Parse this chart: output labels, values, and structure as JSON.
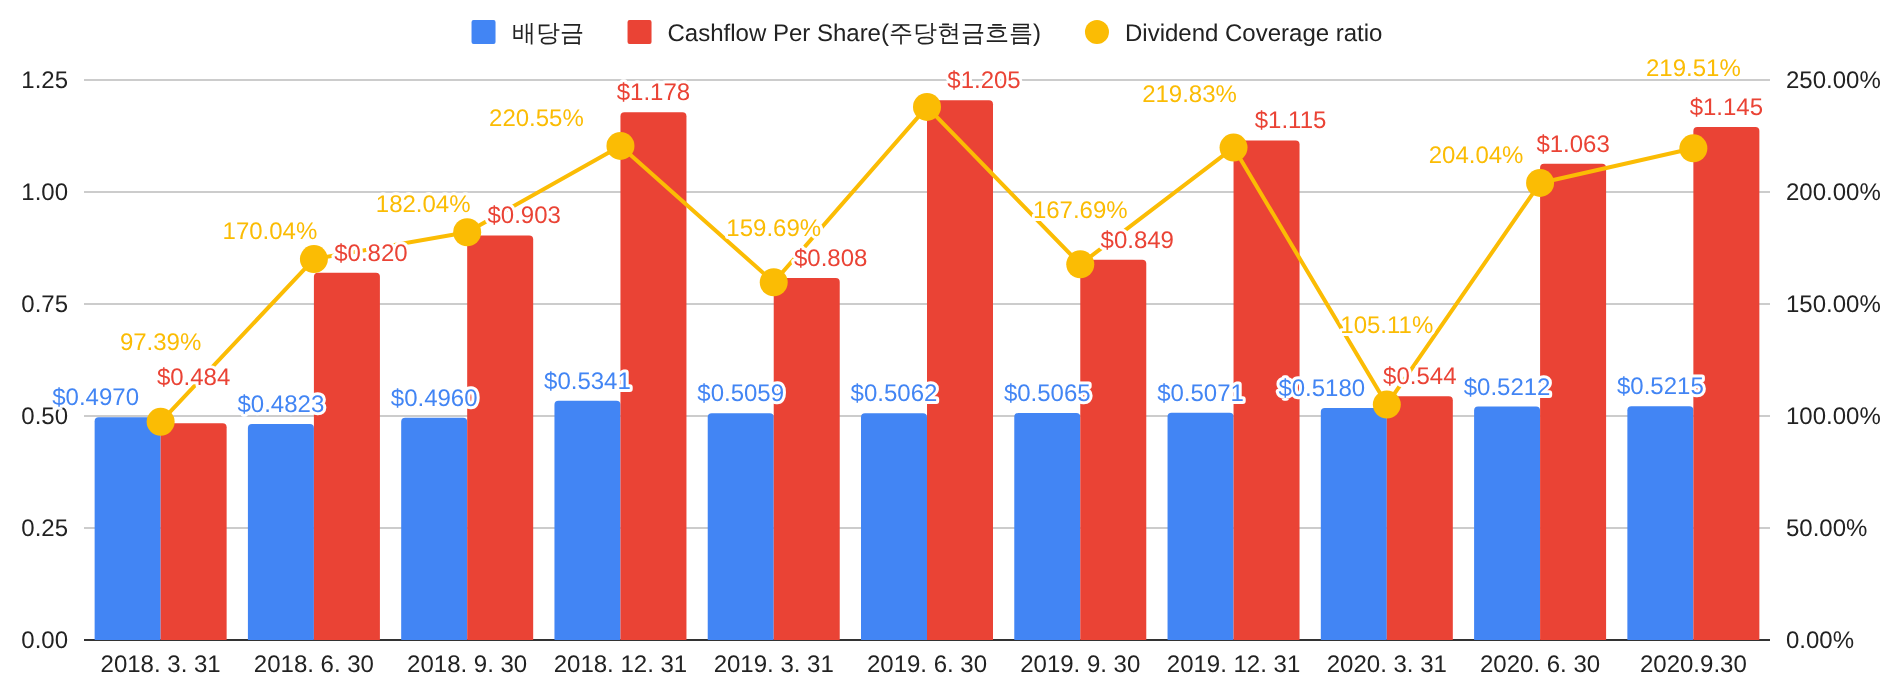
{
  "chart_data": {
    "type": "bar",
    "categories": [
      "2018. 3. 31",
      "2018. 6. 30",
      "2018. 9. 30",
      "2018. 12. 31",
      "2019. 3. 31",
      "2019. 6. 30",
      "2019. 9. 30",
      "2019. 12. 31",
      "2020. 3. 31",
      "2020. 6. 30",
      "2020.9.30"
    ],
    "series": [
      {
        "name": "배당금",
        "color": "#4285f4",
        "values": [
          0.497,
          0.4823,
          0.496,
          0.5341,
          0.5059,
          0.5062,
          0.5065,
          0.5071,
          0.518,
          0.5212,
          0.5215
        ],
        "value_labels": [
          "$0.4970",
          "$0.4823",
          "$0.4960",
          "$0.5341",
          "$0.5059",
          "$0.5062",
          "$0.5065",
          "$0.5071",
          "$0.5180",
          "$0.5212",
          "$0.5215"
        ]
      },
      {
        "name": "Cashflow Per Share(주당현금흐름)",
        "color": "#ea4335",
        "values": [
          0.484,
          0.82,
          0.903,
          1.178,
          0.808,
          1.205,
          0.849,
          1.115,
          0.544,
          1.063,
          1.145
        ],
        "value_labels": [
          "$0.484",
          "$0.820",
          "$0.903",
          "$1.178",
          "$0.808",
          "$1.205",
          "$0.849",
          "$1.115",
          "$0.544",
          "$1.063",
          "$1.145"
        ]
      },
      {
        "name": "Dividend Coverage ratio",
        "type": "line",
        "axis": "y2",
        "marker": "circle",
        "color": "#fbbc04",
        "values": [
          97.39,
          170.04,
          182.04,
          220.55,
          159.69,
          238,
          167.69,
          219.83,
          105.11,
          204.04,
          219.51
        ],
        "value_labels": [
          "97.39%",
          "170.04%",
          "182.04%",
          "220.55%",
          "159.69%",
          null,
          "167.69%",
          "219.83%",
          "105.11%",
          "204.04%",
          "219.51%"
        ]
      }
    ],
    "ylim": [
      0,
      1.25
    ],
    "yticks": [
      {
        "value": 0,
        "label": "0.00"
      },
      {
        "value": 0.25,
        "label": "0.25"
      },
      {
        "value": 0.5,
        "label": "0.50"
      },
      {
        "value": 0.75,
        "label": "0.75"
      },
      {
        "value": 1,
        "label": "1.00"
      },
      {
        "value": 1.25,
        "label": "1.25"
      }
    ],
    "y2lim": [
      0,
      250
    ],
    "y2ticks": [
      {
        "value": 0,
        "label": "0.00%"
      },
      {
        "value": 50,
        "label": "50.00%"
      },
      {
        "value": 100,
        "label": "100.00%"
      },
      {
        "value": 150,
        "label": "150.00%"
      },
      {
        "value": 200,
        "label": "200.00%"
      },
      {
        "value": 250,
        "label": "250.00%"
      }
    ],
    "grid": "y",
    "legend": "top"
  }
}
